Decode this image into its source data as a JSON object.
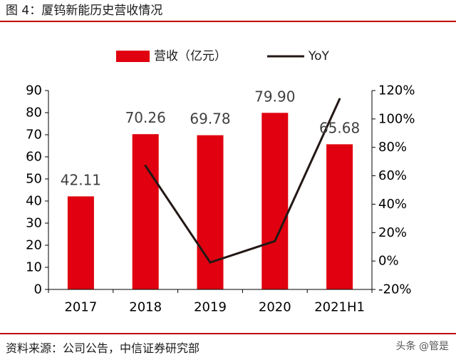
{
  "figure": {
    "title": "图 4：厦钨新能历史营收情况",
    "source": "资料来源：公司公告，中信证券研究部",
    "watermark": "头条 @管是"
  },
  "chart_data": {
    "type": "bar",
    "title": "",
    "categories": [
      "2017",
      "2018",
      "2019",
      "2020",
      "2021H1"
    ],
    "series": [
      {
        "name": "营收（亿元）",
        "type": "bar",
        "axis": "left",
        "color": "#e0000f",
        "values": [
          42.11,
          70.26,
          69.78,
          79.9,
          65.68
        ],
        "labels": [
          "42.11",
          "70.26",
          "69.78",
          "79.90",
          "65.68"
        ]
      },
      {
        "name": "YoY",
        "type": "line",
        "axis": "right",
        "unit": "%",
        "color": "#231815",
        "values": [
          null,
          67,
          -1,
          14,
          114
        ]
      }
    ],
    "y_left": {
      "min": 0,
      "max": 90,
      "step": 10,
      "ticks": [
        "0",
        "10",
        "20",
        "30",
        "40",
        "50",
        "60",
        "70",
        "80",
        "90"
      ]
    },
    "y_right": {
      "min": -20,
      "max": 120,
      "step": 20,
      "ticks": [
        "-20%",
        "0%",
        "20%",
        "40%",
        "60%",
        "80%",
        "100%",
        "120%"
      ]
    },
    "legend_position": "top-center",
    "grid": false
  }
}
